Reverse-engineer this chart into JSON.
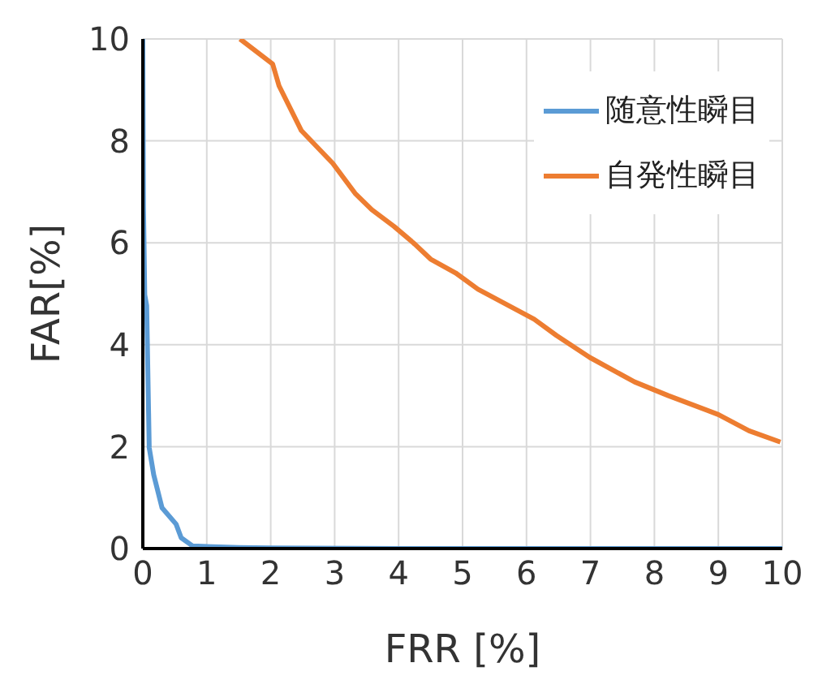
{
  "chart_data": {
    "type": "line",
    "xlabel": "FRR [%]",
    "ylabel": "FAR[%]",
    "xlim": [
      0,
      10
    ],
    "ylim": [
      0,
      10
    ],
    "xticks": [
      0,
      1,
      2,
      3,
      4,
      5,
      6,
      7,
      8,
      9,
      10
    ],
    "yticks": [
      0,
      2,
      4,
      6,
      8,
      10
    ],
    "grid": true,
    "legend": "top right",
    "marker": "none",
    "line_style": "solid",
    "series": [
      {
        "name": "随意性瞬目",
        "color": "#5b9bd5",
        "x": [
          0,
          0.01,
          0.03,
          0.06,
          0.1,
          0.17,
          0.3,
          0.52,
          0.6,
          0.78,
          1.5,
          2,
          4,
          6,
          10
        ],
        "values": [
          10,
          6.7,
          4.98,
          4.77,
          1.98,
          1.45,
          0.8,
          0.48,
          0.21,
          0.05,
          0.02,
          0.01,
          0,
          0,
          0
        ]
      },
      {
        "name": "自発性瞬目",
        "color": "#ed7d31",
        "x": [
          1.52,
          2.03,
          2.13,
          2.48,
          2.97,
          3.32,
          3.58,
          3.93,
          4.23,
          4.5,
          4.89,
          5.24,
          6.12,
          6.47,
          6.99,
          7.69,
          8.22,
          9,
          9.48,
          9.97
        ],
        "values": [
          10,
          9.51,
          9.08,
          8.2,
          7.56,
          6.97,
          6.65,
          6.32,
          6,
          5.68,
          5.41,
          5.09,
          4.5,
          4.18,
          3.75,
          3.27,
          3,
          2.63,
          2.31,
          2.09
        ]
      }
    ]
  }
}
